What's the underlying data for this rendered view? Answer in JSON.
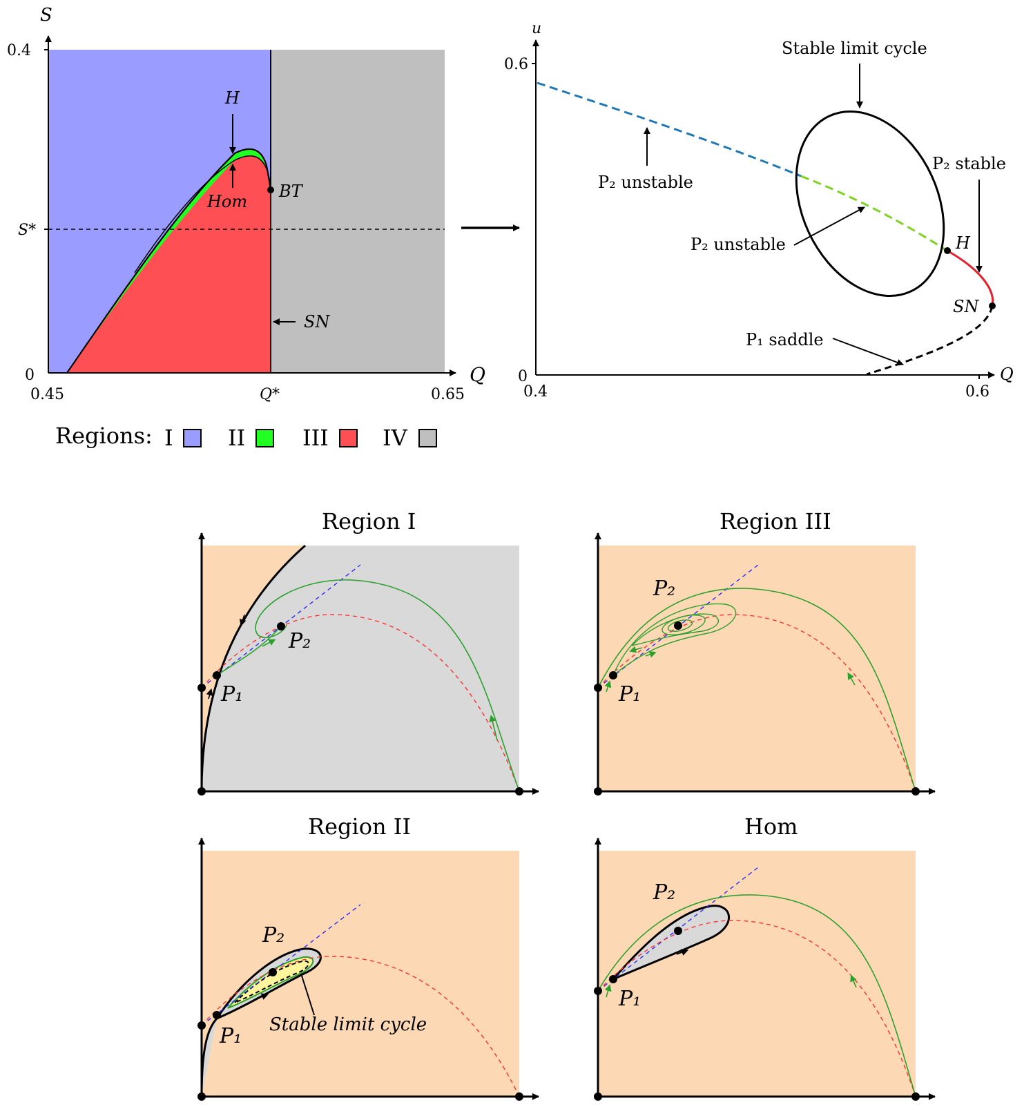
{
  "top_left": {
    "axis_y": "S",
    "axis_x": "Q",
    "ytick_top": "0.4",
    "ytick_zero": "0",
    "ytick_star": "S*",
    "xtick_left": "0.45",
    "xtick_star": "Q*",
    "xtick_right": "0.65",
    "label_H": "H",
    "label_Hom": "Hom",
    "label_BT": "BT",
    "label_SN": "SN",
    "colors": {
      "region_I": "#9a9cff",
      "region_II": "#22ff22",
      "region_III": "#fe4f55",
      "region_IV": "#bfbfbf"
    }
  },
  "legend": {
    "title": "Regions:",
    "items": [
      {
        "label": "I",
        "color": "#9a9cff"
      },
      {
        "label": "II",
        "color": "#22ff22"
      },
      {
        "label": "III",
        "color": "#fe4f55"
      },
      {
        "label": "IV",
        "color": "#bfbfbf"
      }
    ]
  },
  "top_right": {
    "axis_y": "u",
    "axis_x": "Q",
    "ytick_top": "0.6",
    "ytick_zero": "0",
    "xtick_left": "0.4",
    "xtick_right": "0.6",
    "ann_stable_cycle": "Stable limit cycle",
    "ann_p2_unstable_1": "P₂ unstable",
    "ann_p2_unstable_2": "P₂ unstable",
    "ann_p2_stable": "P₂ stable",
    "ann_p1_saddle": "P₁ saddle",
    "label_H": "H",
    "label_SN": "SN"
  },
  "panels": {
    "region_I": {
      "title": "Region I",
      "p1": "P₁",
      "p2": "P₂"
    },
    "region_III": {
      "title": "Region III",
      "p1": "P₁",
      "p2": "P₂"
    },
    "region_II": {
      "title": "Region II",
      "p1": "P₁",
      "p2": "P₂",
      "annotation": "Stable limit cycle"
    },
    "hom": {
      "title": "Hom",
      "p1": "P₁",
      "p2": "P₂"
    }
  },
  "colors": {
    "phase_bg": "#fcd9b4",
    "basin_gray": "#d9d9d9",
    "orbit_green": "#2ca02c",
    "nullcline_red": "#ff3030",
    "nullcline_blue": "#2b2bff"
  }
}
